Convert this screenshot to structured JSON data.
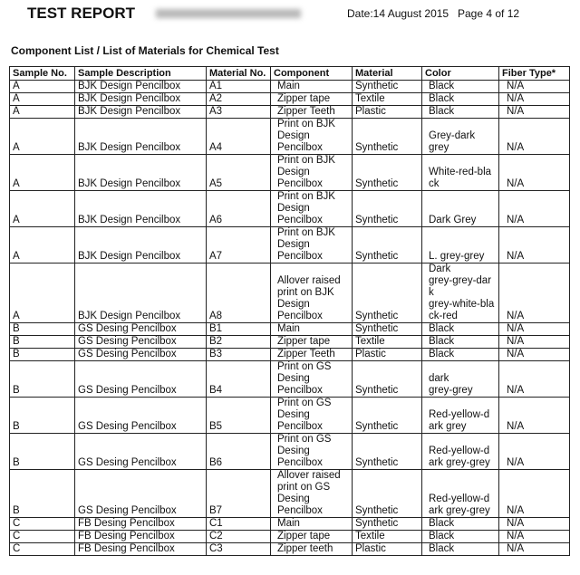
{
  "header": {
    "title": "TEST REPORT",
    "date": "Date:14 August 2015",
    "page": "Page 4 of 12"
  },
  "section_title": "Component List / List of Materials for Chemical Test",
  "table": {
    "header": [
      "Sample No.",
      "Sample Description",
      "Material No.",
      "Component",
      "Material",
      "Color",
      "Fiber Type*"
    ],
    "rows": [
      [
        "A",
        "BJK Design Pencilbox",
        "A1",
        "Main",
        "Synthetic",
        "Black",
        "N/A"
      ],
      [
        "A",
        "BJK Design Pencilbox",
        "A2",
        "Zipper tape",
        "Textile",
        "Black",
        "N/A"
      ],
      [
        "A",
        "BJK Design Pencilbox",
        "A3",
        "Zipper Teeth",
        "Plastic",
        "Black",
        "N/A"
      ],
      [
        "A",
        "BJK Design Pencilbox",
        "A4",
        "Print  on BJK\nDesign\nPencilbox",
        "Synthetic",
        "Grey-dark\ngrey",
        "N/A"
      ],
      [
        "A",
        "BJK Design Pencilbox",
        "A5",
        "Print  on BJK\nDesign\nPencilbox",
        "Synthetic",
        "White-red-bla\nck",
        "N/A"
      ],
      [
        "A",
        "BJK Design Pencilbox",
        "A6",
        "Print  on BJK\nDesign\nPencilbox",
        "Synthetic",
        "Dark Grey",
        "N/A"
      ],
      [
        "A",
        "BJK Design Pencilbox",
        "A7",
        "Print  on BJK\nDesign\nPencilbox",
        "Synthetic",
        "L. grey-grey",
        "N/A"
      ],
      [
        "A",
        "BJK Design Pencilbox",
        "A8",
        "Allover raised\nprint  on BJK\nDesign\nPencilbox",
        "Synthetic",
        "Dark\ngrey-grey-dar\nk\ngrey-white-bla\nck-red",
        "N/A"
      ],
      [
        "B",
        "GS Desing Pencilbox",
        "B1",
        "Main",
        "Synthetic",
        "Black",
        "N/A"
      ],
      [
        "B",
        "GS Desing Pencilbox",
        "B2",
        "Zipper tape",
        "Textile",
        "Black",
        "N/A"
      ],
      [
        "B",
        "GS Desing Pencilbox",
        "B3",
        "Zipper Teeth",
        "Plastic",
        "Black",
        "N/A"
      ],
      [
        "B",
        "GS Desing Pencilbox",
        "B4",
        "Print on GS\nDesing\nPencilbox",
        "Synthetic",
        "dark\ngrey-grey",
        "N/A"
      ],
      [
        "B",
        "GS Desing Pencilbox",
        "B5",
        "Print on GS\nDesing\nPencilbox",
        "Synthetic",
        "Red-yellow-d\nark grey",
        "N/A"
      ],
      [
        "B",
        "GS Desing Pencilbox",
        "B6",
        "Print on GS\nDesing\nPencilbox",
        "Synthetic",
        "Red-yellow-d\nark grey-grey",
        "N/A"
      ],
      [
        "B",
        "GS Desing Pencilbox",
        "B7",
        "Allover raised\nprint on GS\nDesing\nPencilbox",
        "Synthetic",
        "Red-yellow-d\nark grey-grey",
        "N/A"
      ],
      [
        "C",
        "FB Desing Pencilbox",
        "C1",
        "Main",
        "Synthetic",
        "Black",
        "N/A"
      ],
      [
        "C",
        "FB Desing Pencilbox",
        "C2",
        "Zipper tape",
        "Textile",
        "Black",
        "N/A"
      ],
      [
        "C",
        "FB Desing Pencilbox",
        "C3",
        "Zipper teeth",
        "Plastic",
        "Black",
        "N/A"
      ]
    ]
  }
}
